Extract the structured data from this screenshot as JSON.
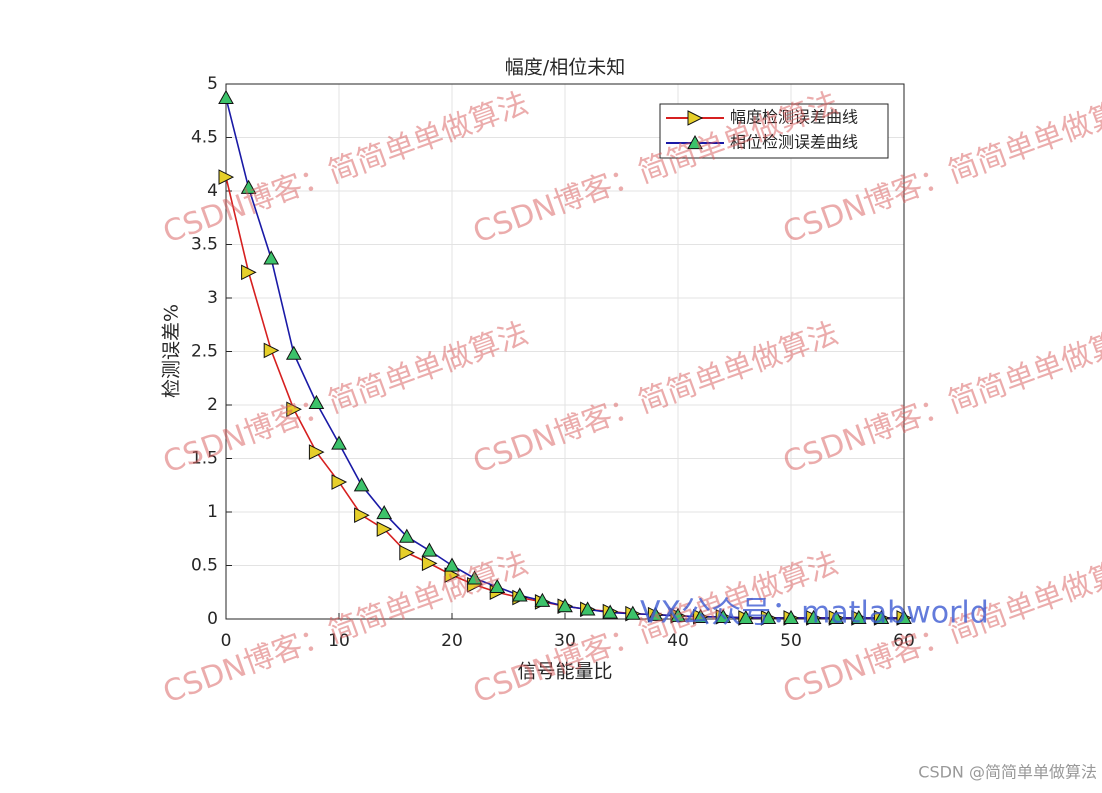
{
  "chart_data": {
    "type": "line",
    "title": "幅度/相位未知",
    "xlabel": "信号能量比",
    "ylabel": "检测误差%",
    "x": [
      0,
      2,
      4,
      6,
      8,
      10,
      12,
      14,
      16,
      18,
      20,
      22,
      24,
      26,
      28,
      30,
      32,
      34,
      36,
      38,
      40,
      42,
      44,
      46,
      48,
      50,
      52,
      54,
      56,
      58,
      60
    ],
    "series": [
      {
        "name": "幅度检测误差曲线",
        "color": "#d62020",
        "marker": "triangle-right",
        "marker_color": "#e6cf2a",
        "values": [
          4.13,
          3.24,
          2.51,
          1.96,
          1.56,
          1.28,
          0.97,
          0.84,
          0.62,
          0.52,
          0.41,
          0.32,
          0.25,
          0.2,
          0.16,
          0.12,
          0.09,
          0.07,
          0.05,
          0.04,
          0.03,
          0.02,
          0.02,
          0.01,
          0.01,
          0.01,
          0.01,
          0.01,
          0.01,
          0.01,
          0.01
        ]
      },
      {
        "name": "相位检测误差曲线",
        "color": "#1a1aa6",
        "marker": "triangle-up",
        "marker_color": "#3cc26a",
        "values": [
          4.87,
          4.03,
          3.37,
          2.48,
          2.02,
          1.64,
          1.25,
          0.99,
          0.77,
          0.64,
          0.5,
          0.38,
          0.3,
          0.22,
          0.17,
          0.12,
          0.09,
          0.06,
          0.05,
          0.04,
          0.03,
          0.02,
          0.02,
          0.01,
          0.01,
          0.01,
          0.01,
          0.01,
          0.01,
          0.01,
          0.01
        ]
      }
    ],
    "xlim": [
      0,
      60
    ],
    "xticks": [
      0,
      10,
      20,
      30,
      40,
      50,
      60
    ],
    "ylim": [
      0,
      5
    ],
    "yticks": [
      0,
      0.5,
      1,
      1.5,
      2,
      2.5,
      3,
      3.5,
      4,
      4.5,
      5
    ],
    "grid": true,
    "legend": "top-right"
  },
  "watermark": "CSDN博客：简简单单做算法",
  "wechat_watermark": "VX公众号：matlabworld",
  "footer": "CSDN @简简单单做算法"
}
